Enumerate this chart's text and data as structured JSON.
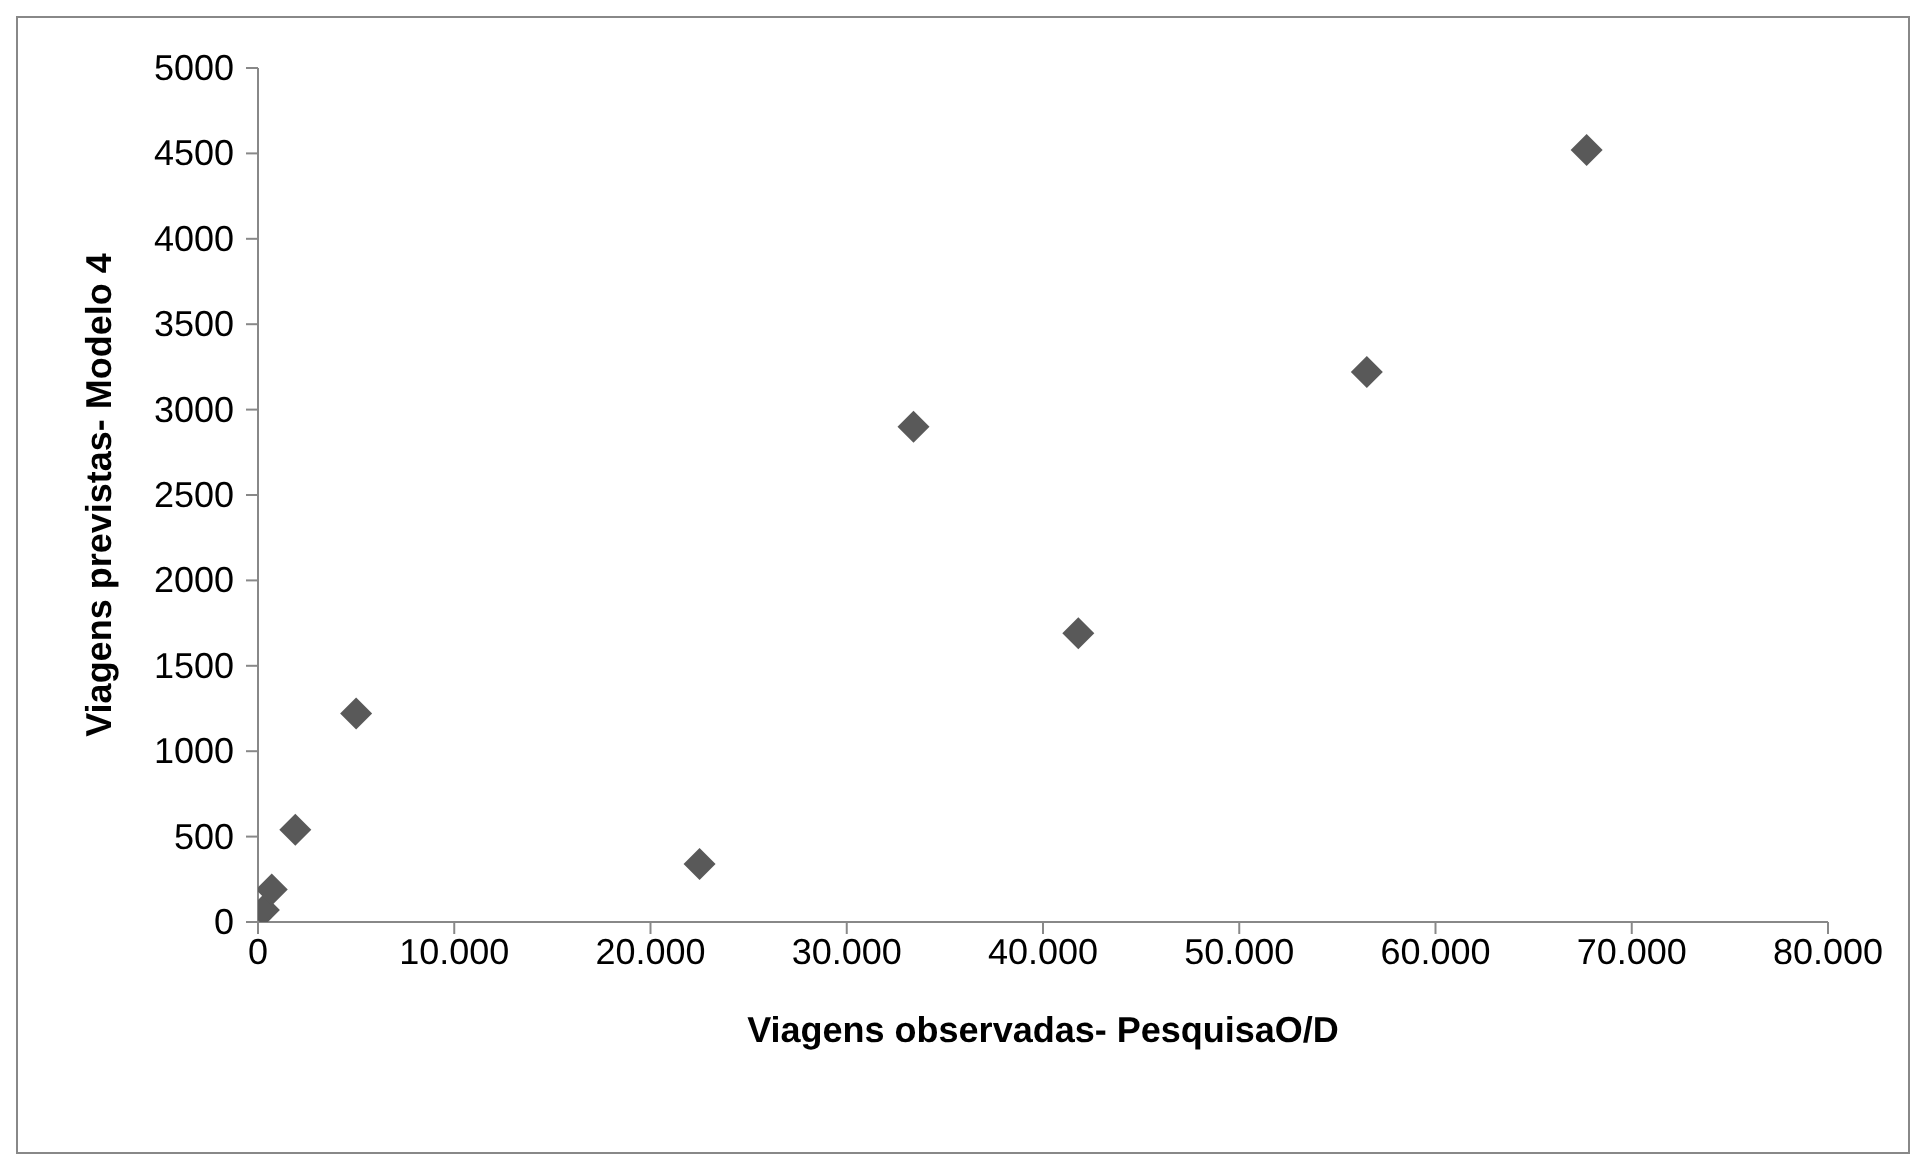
{
  "chart_data": {
    "type": "scatter",
    "xlabel": "Viagens observadas- PesquisaO/D",
    "ylabel": "Viagens previstas- Modelo 4",
    "x": [
      300,
      700,
      1900,
      5000,
      22500,
      33400,
      41800,
      56500,
      67700
    ],
    "values": [
      70,
      190,
      540,
      1220,
      340,
      2900,
      1690,
      3220,
      4520
    ],
    "color": "#595959",
    "marker": "diamond",
    "grid": false,
    "legend": false,
    "xlim": [
      0,
      80000
    ],
    "xticks": [
      {
        "value": 0,
        "label": "0"
      },
      {
        "value": 10000,
        "label": "10.000"
      },
      {
        "value": 20000,
        "label": "20.000"
      },
      {
        "value": 30000,
        "label": "30.000"
      },
      {
        "value": 40000,
        "label": "40.000"
      },
      {
        "value": 50000,
        "label": "50.000"
      },
      {
        "value": 60000,
        "label": "60.000"
      },
      {
        "value": 70000,
        "label": "70.000"
      },
      {
        "value": 80000,
        "label": "80.000"
      }
    ],
    "ylim": [
      0,
      5000
    ],
    "yticks": [
      0,
      500,
      1000,
      1500,
      2000,
      2500,
      3000,
      3500,
      4000,
      4500,
      5000
    ]
  }
}
